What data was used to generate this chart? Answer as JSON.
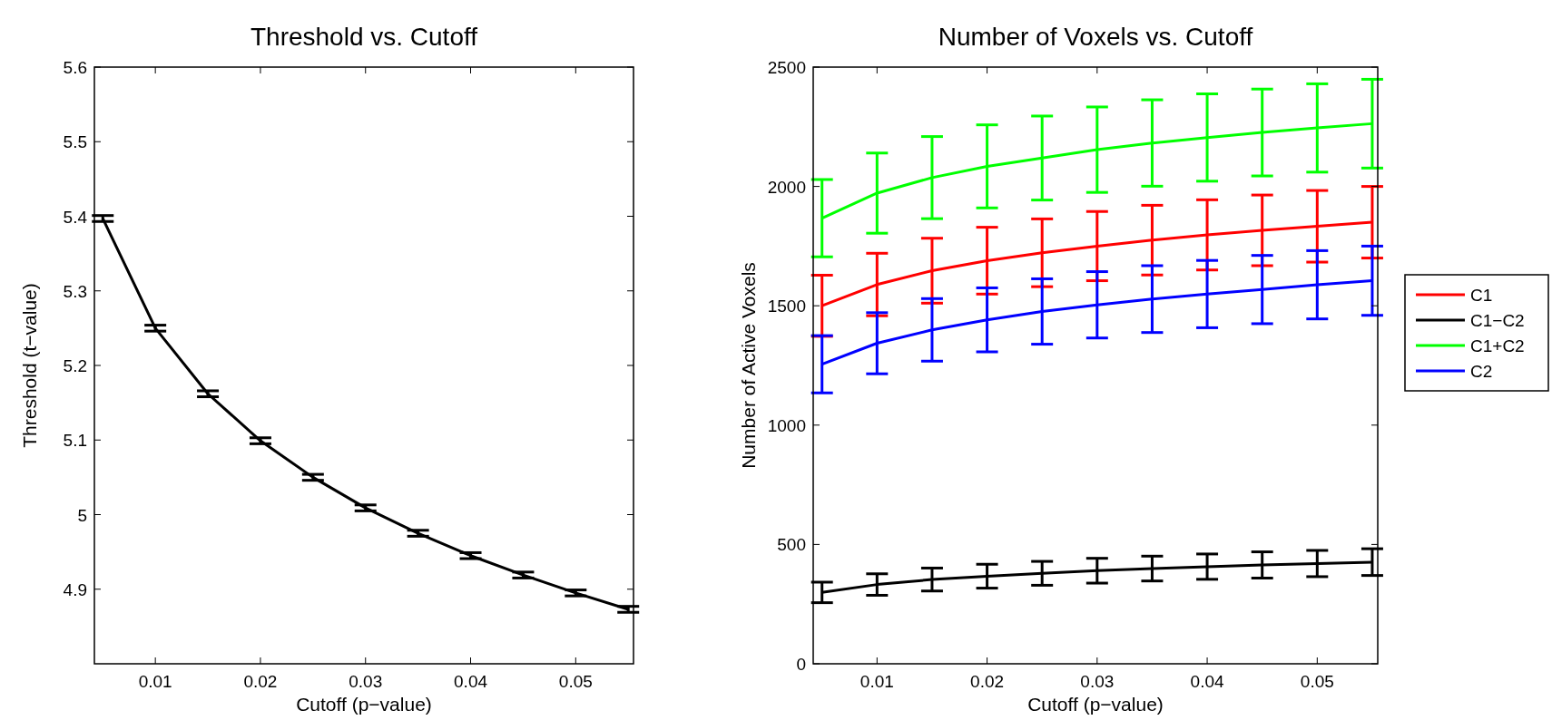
{
  "chart_data": [
    {
      "type": "line",
      "title": "Threshold vs. Cutoff",
      "xlabel": "Cutoff (p−value)",
      "ylabel": "Threshold (t−value)",
      "x": [
        0.005,
        0.01,
        0.015,
        0.02,
        0.025,
        0.03,
        0.035,
        0.04,
        0.045,
        0.05,
        0.055
      ],
      "xlim": [
        0.0042,
        0.0555
      ],
      "xticks": [
        0.01,
        0.02,
        0.03,
        0.04,
        0.05
      ],
      "ylim": [
        4.8,
        5.6
      ],
      "yticks": [
        4.9,
        5,
        5.1,
        5.2,
        5.3,
        5.4,
        5.5,
        5.6
      ],
      "grid": false,
      "legend": false,
      "marker": "none",
      "series": [
        {
          "color": "#000000",
          "values": [
            5.397,
            5.25,
            5.162,
            5.099,
            5.05,
            5.009,
            4.975,
            4.945,
            4.919,
            4.895,
            4.873
          ],
          "errors": [
            0.004,
            0.004,
            0.004,
            0.004,
            0.004,
            0.004,
            0.004,
            0.004,
            0.004,
            0.004,
            0.004
          ]
        }
      ]
    },
    {
      "type": "line",
      "title": "Number of Voxels vs. Cutoff",
      "xlabel": "Cutoff (p−value)",
      "ylabel": "Number of Active Voxels",
      "x": [
        0.005,
        0.01,
        0.015,
        0.02,
        0.025,
        0.03,
        0.035,
        0.04,
        0.045,
        0.05,
        0.055
      ],
      "xlim": [
        0.0042,
        0.0555
      ],
      "xticks": [
        0.01,
        0.02,
        0.03,
        0.04,
        0.05
      ],
      "ylim": [
        0,
        2500
      ],
      "yticks": [
        0,
        500,
        1000,
        1500,
        2000,
        2500
      ],
      "grid": false,
      "legend": "right",
      "marker": "none",
      "series": [
        {
          "name": "C1",
          "color": "#ff0000",
          "values": [
            1500,
            1589,
            1647,
            1689,
            1722,
            1750,
            1775,
            1797,
            1816,
            1833,
            1850
          ],
          "errors": [
            128,
            131,
            136,
            140,
            142,
            145,
            146,
            147,
            148,
            150,
            150
          ]
        },
        {
          "name": "C1−C2",
          "color": "#000000",
          "values": [
            299,
            332,
            353,
            367,
            379,
            390,
            399,
            407,
            414,
            420,
            426
          ],
          "errors": [
            43,
            45,
            48,
            50,
            50,
            52,
            52,
            53,
            55,
            55,
            56
          ]
        },
        {
          "name": "C1+C2",
          "color": "#00ff00",
          "values": [
            1867,
            1972,
            2037,
            2084,
            2119,
            2154,
            2182,
            2205,
            2226,
            2245,
            2263
          ],
          "errors": [
            162,
            168,
            172,
            174,
            176,
            179,
            181,
            183,
            182,
            185,
            186
          ]
        },
        {
          "name": "C2",
          "color": "#0000ff",
          "values": [
            1255,
            1343,
            1399,
            1441,
            1476,
            1504,
            1528,
            1549,
            1568,
            1588,
            1605
          ],
          "errors": [
            120,
            128,
            131,
            134,
            137,
            139,
            140,
            141,
            143,
            143,
            145
          ]
        }
      ]
    }
  ]
}
